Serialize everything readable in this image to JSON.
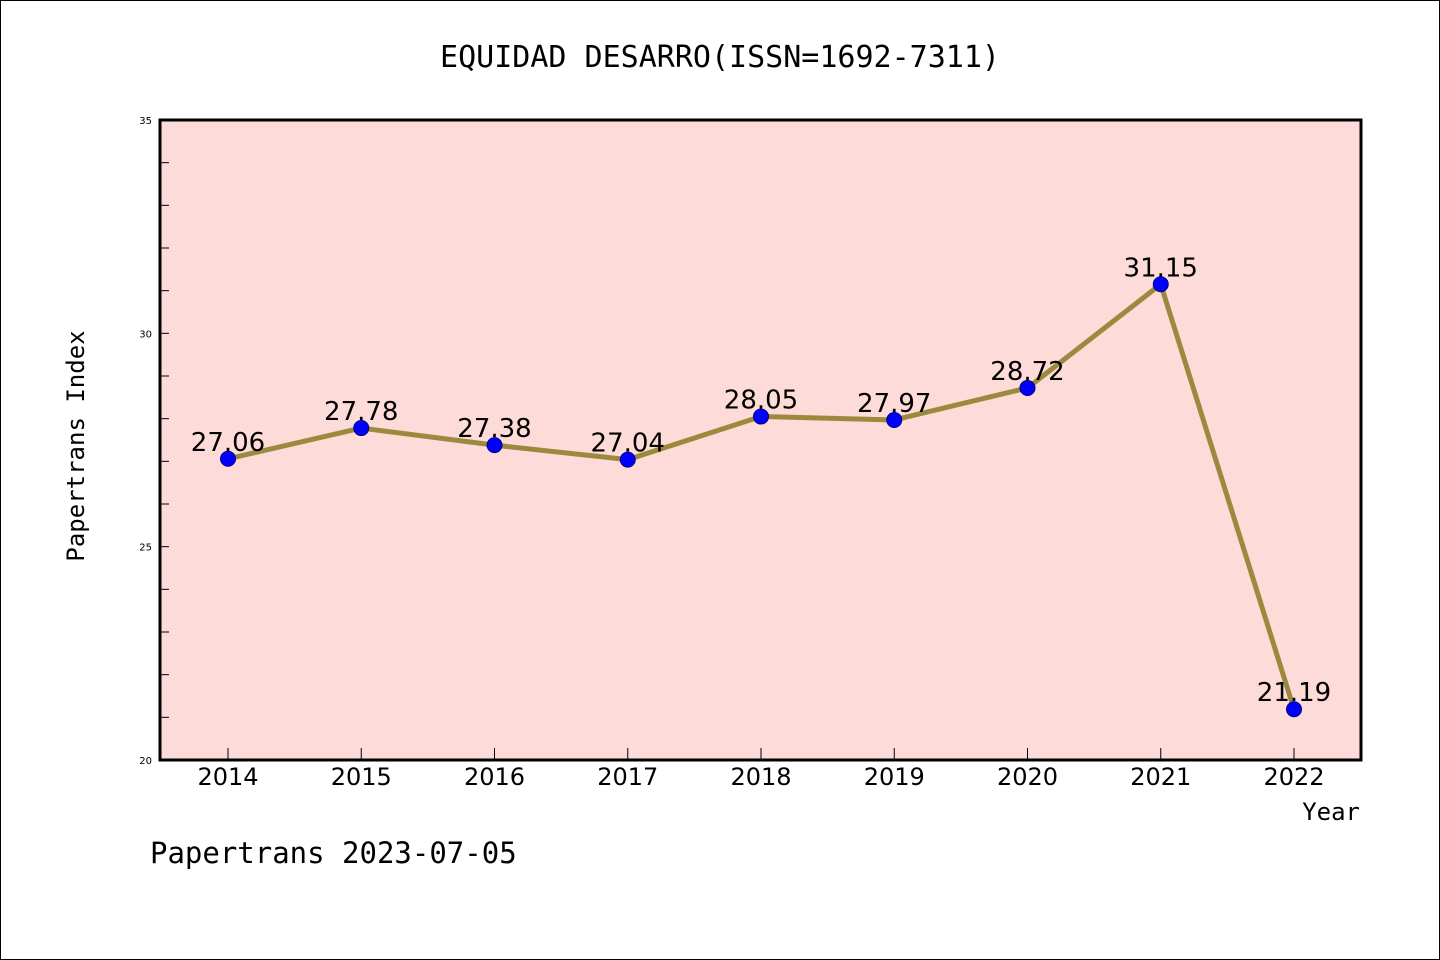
{
  "chart_data": {
    "type": "line",
    "title": "EQUIDAD DESARRO(ISSN=1692-7311)",
    "xlabel": "Year",
    "ylabel": "Papertrans Index",
    "categories": [
      "2014",
      "2015",
      "2016",
      "2017",
      "2018",
      "2019",
      "2020",
      "2021",
      "2022"
    ],
    "series": [
      {
        "name": "Papertrans Index",
        "values": [
          27.06,
          27.78,
          27.38,
          27.04,
          28.05,
          27.97,
          28.72,
          31.15,
          21.19
        ],
        "labels": [
          "27.06",
          "27.78",
          "27.38",
          "27.04",
          "28.05",
          "27.97",
          "28.72",
          "31.15",
          "21.19"
        ]
      }
    ],
    "ylim": [
      20,
      35
    ],
    "yticks": [
      "20",
      "25",
      "30",
      "35"
    ],
    "grid": false,
    "colors": {
      "plot_background": "#fddbd8",
      "line": "#9b8a3e",
      "marker_fill": "#0000ff",
      "marker_edge": "#000080"
    }
  },
  "footer": "Papertrans 2023-07-05"
}
